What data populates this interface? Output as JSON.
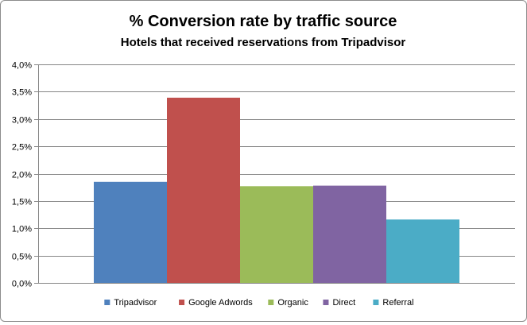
{
  "chart_data": {
    "type": "bar",
    "title": "% Conversion rate by traffic source",
    "subtitle": "Hotels that received reservations from Tripadvisor",
    "xlabel": "",
    "ylabel": "",
    "ylim": [
      0,
      4.0
    ],
    "y_tick_step": 0.5,
    "y_tick_labels": [
      "0,0%",
      "0,5%",
      "1,0%",
      "1,5%",
      "2,0%",
      "2,5%",
      "3,0%",
      "3,5%",
      "4,0%"
    ],
    "grid": true,
    "legend_position": "bottom",
    "series": [
      {
        "name": "Tripadvisor",
        "value": 1.85,
        "color": "#4f81bd"
      },
      {
        "name": "Google Adwords",
        "value": 3.39,
        "color": "#c0504d"
      },
      {
        "name": "Organic",
        "value": 1.77,
        "color": "#9bbb59"
      },
      {
        "name": "Direct",
        "value": 1.78,
        "color": "#8064a2"
      },
      {
        "name": "Referral",
        "value": 1.16,
        "color": "#4bacc6"
      }
    ]
  }
}
